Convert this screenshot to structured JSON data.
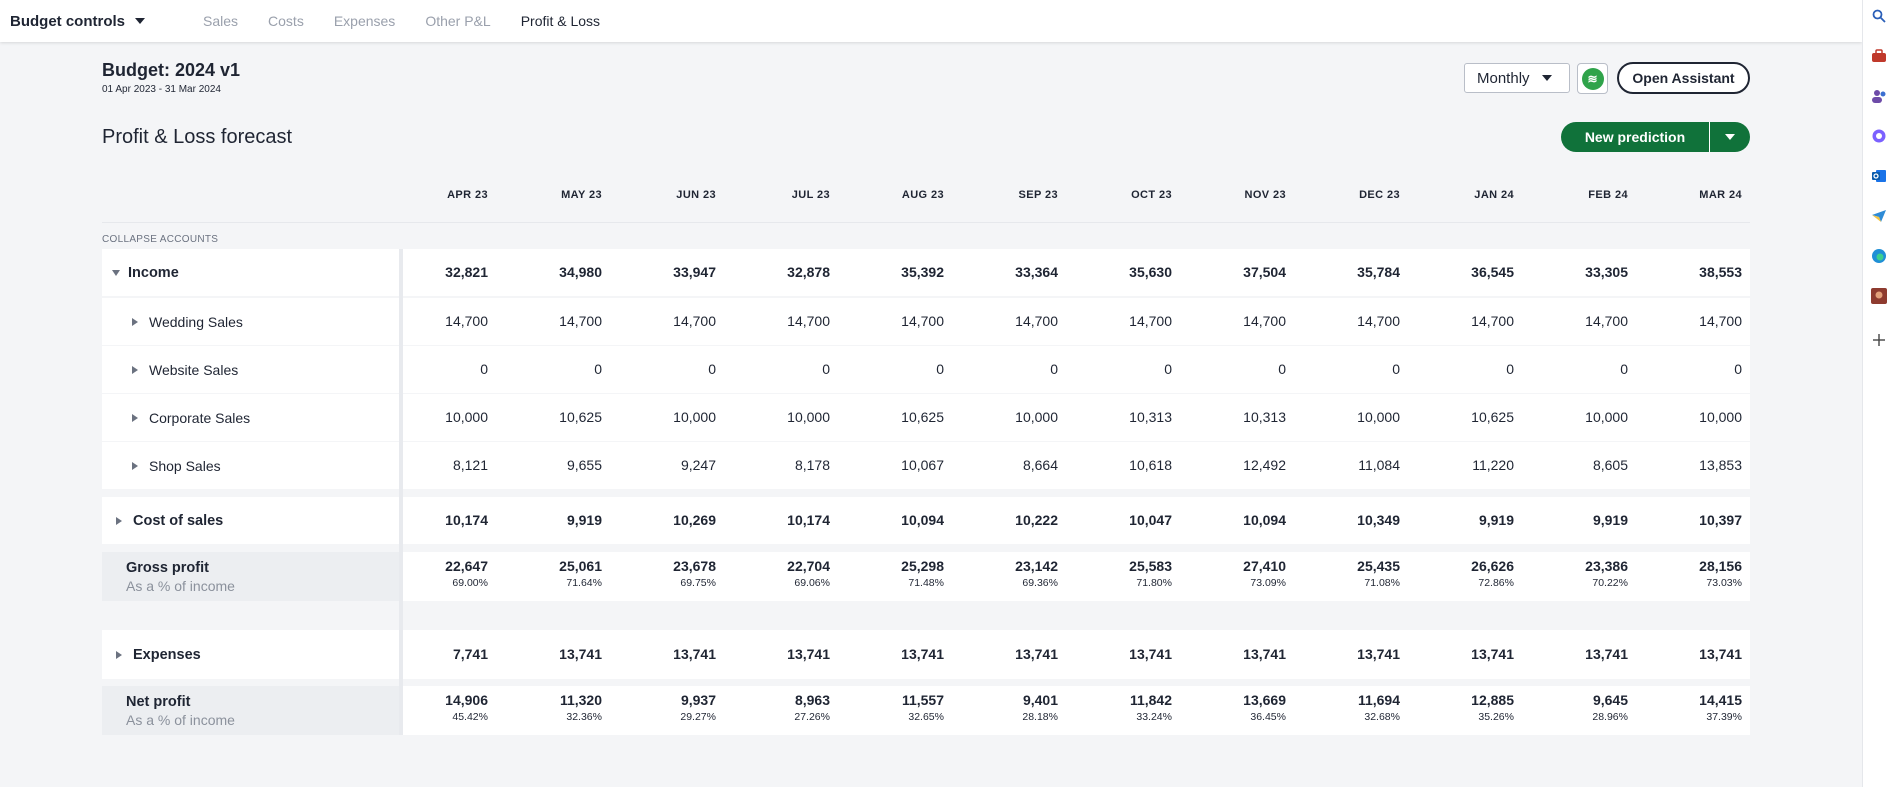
{
  "app_menu": {
    "label": "Budget controls"
  },
  "tabs": [
    {
      "label": "Sales",
      "active": false
    },
    {
      "label": "Costs",
      "active": false
    },
    {
      "label": "Expenses",
      "active": false
    },
    {
      "label": "Other P&L",
      "active": false
    },
    {
      "label": "Profit & Loss",
      "active": true
    }
  ],
  "budget": {
    "title": "Budget: 2024 v1",
    "dates": "01 Apr 2023 - 31 Mar 2024"
  },
  "page_title": "Profit & Loss forecast",
  "controls": {
    "period": "Monthly",
    "logo_glyph": "≋",
    "assistant_label": "Open Assistant",
    "new_prediction_label": "New prediction"
  },
  "table": {
    "collapse_label": "COLLAPSE ACCOUNTS",
    "columns": [
      "APR 23",
      "MAY 23",
      "JUN 23",
      "JUL 23",
      "AUG 23",
      "SEP 23",
      "OCT 23",
      "NOV 23",
      "DEC 23",
      "JAN 24",
      "FEB 24",
      "MAR 24"
    ],
    "rows": [
      {
        "label": "Income",
        "kind": "group-open",
        "values": [
          "32,821",
          "34,980",
          "33,947",
          "32,878",
          "35,392",
          "33,364",
          "35,630",
          "37,504",
          "35,784",
          "36,545",
          "33,305",
          "38,553"
        ]
      },
      {
        "label": "Wedding Sales",
        "kind": "child",
        "values": [
          "14,700",
          "14,700",
          "14,700",
          "14,700",
          "14,700",
          "14,700",
          "14,700",
          "14,700",
          "14,700",
          "14,700",
          "14,700",
          "14,700"
        ]
      },
      {
        "label": "Website Sales",
        "kind": "child",
        "values": [
          "0",
          "0",
          "0",
          "0",
          "0",
          "0",
          "0",
          "0",
          "0",
          "0",
          "0",
          "0"
        ]
      },
      {
        "label": "Corporate Sales",
        "kind": "child",
        "values": [
          "10,000",
          "10,625",
          "10,000",
          "10,000",
          "10,625",
          "10,000",
          "10,313",
          "10,313",
          "10,000",
          "10,625",
          "10,000",
          "10,000"
        ]
      },
      {
        "label": "Shop Sales",
        "kind": "child",
        "values": [
          "8,121",
          "9,655",
          "9,247",
          "8,178",
          "10,067",
          "8,664",
          "10,618",
          "12,492",
          "11,084",
          "11,220",
          "8,605",
          "13,853"
        ]
      },
      {
        "label": "Cost of sales",
        "kind": "group",
        "values": [
          "10,174",
          "9,919",
          "10,269",
          "10,174",
          "10,094",
          "10,222",
          "10,047",
          "10,094",
          "10,349",
          "9,919",
          "9,919",
          "10,397"
        ]
      },
      {
        "label": "Gross profit",
        "kind": "total",
        "sub_label": "As a % of income",
        "values": [
          "22,647",
          "25,061",
          "23,678",
          "22,704",
          "25,298",
          "23,142",
          "25,583",
          "27,410",
          "25,435",
          "26,626",
          "23,386",
          "28,156"
        ],
        "pcts": [
          "69.00%",
          "71.64%",
          "69.75%",
          "69.06%",
          "71.48%",
          "69.36%",
          "71.80%",
          "73.09%",
          "71.08%",
          "72.86%",
          "70.22%",
          "73.03%"
        ]
      },
      {
        "label": "Expenses",
        "kind": "group",
        "values": [
          "7,741",
          "13,741",
          "13,741",
          "13,741",
          "13,741",
          "13,741",
          "13,741",
          "13,741",
          "13,741",
          "13,741",
          "13,741",
          "13,741"
        ]
      },
      {
        "label": "Net profit",
        "kind": "total",
        "sub_label": "As a % of income",
        "values": [
          "14,906",
          "11,320",
          "9,937",
          "8,963",
          "11,557",
          "9,401",
          "11,842",
          "13,669",
          "11,694",
          "12,885",
          "9,645",
          "14,415"
        ],
        "pcts": [
          "45.42%",
          "32.36%",
          "29.27%",
          "27.26%",
          "32.65%",
          "28.18%",
          "33.24%",
          "36.45%",
          "32.68%",
          "35.26%",
          "28.96%",
          "37.39%"
        ]
      }
    ]
  },
  "rail_icons": [
    "search-icon",
    "briefcase-icon",
    "people-icon",
    "copilot-icon",
    "outlook-icon",
    "send-icon",
    "edge-icon",
    "avatar-icon",
    "plus-icon"
  ],
  "colors": {
    "brand_green": "#10723a",
    "logo_green": "#2fa34a",
    "text": "#1f2533",
    "muted": "#9aa0ac"
  }
}
